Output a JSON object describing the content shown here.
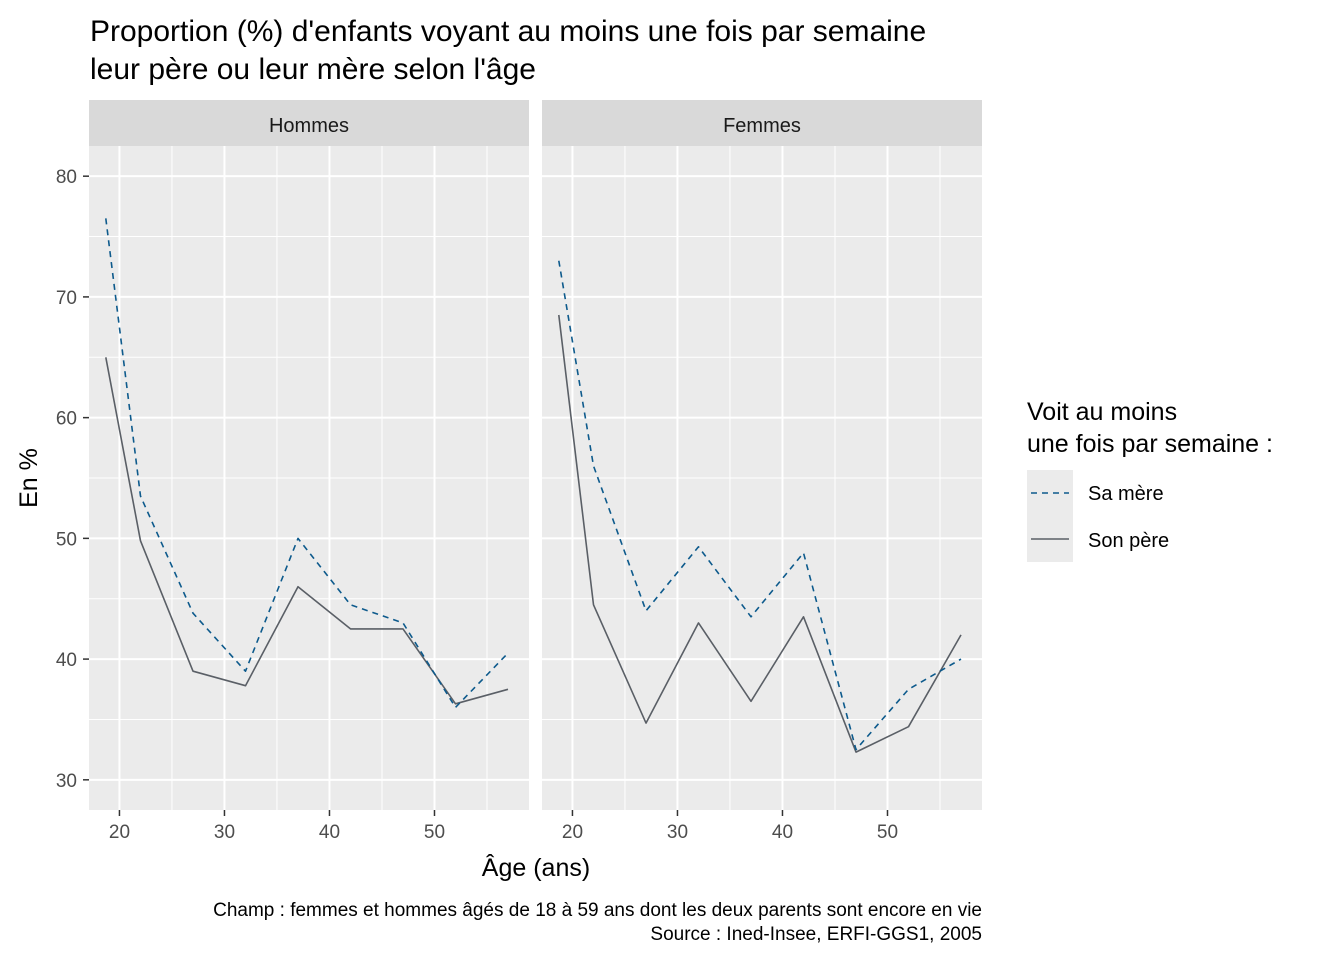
{
  "chart_data": {
    "type": "line",
    "title": [
      "Proportion (%) d'enfants voyant au moins une fois par semaine",
      "leur père ou leur mère selon l'âge"
    ],
    "xlabel": "Âge (ans)",
    "ylabel": "En %",
    "xlim": [
      17.1,
      59.0
    ],
    "ylim": [
      27.5,
      82.5
    ],
    "x_ticks": [
      20,
      30,
      40,
      50
    ],
    "y_ticks": [
      30,
      40,
      50,
      60,
      70,
      80
    ],
    "grid": true,
    "legend": {
      "position": "right",
      "title": [
        "Voit au moins",
        "une fois par semaine :"
      ],
      "entries": [
        {
          "label": "Sa mère",
          "color": "#0d5a8c",
          "dash": "dashed"
        },
        {
          "label": "Son père",
          "color": "#5a5f66",
          "dash": "solid"
        }
      ]
    },
    "caption": [
      "Champ : femmes et hommes âgés de 18 à 59 ans dont les deux parents sont encore en vie",
      "Source : Ined-Insee, ERFI-GGS1, 2005"
    ],
    "panels": [
      {
        "strip": "Hommes",
        "series": [
          {
            "name": "Sa mère",
            "x": [
              18.7,
              22,
              27,
              32,
              37,
              42,
              47,
              52,
              57
            ],
            "y": [
              76.5,
              53.5,
              43.8,
              39.0,
              50.0,
              44.5,
              43.0,
              36.0,
              40.5
            ]
          },
          {
            "name": "Son père",
            "x": [
              18.7,
              22,
              27,
              32,
              37,
              42,
              47,
              52,
              57
            ],
            "y": [
              65.0,
              49.8,
              39.0,
              37.8,
              46.0,
              42.5,
              42.5,
              36.3,
              37.5
            ]
          }
        ]
      },
      {
        "strip": "Femmes",
        "series": [
          {
            "name": "Sa mère",
            "x": [
              18.7,
              22,
              27,
              32,
              37,
              42,
              47,
              52,
              57
            ],
            "y": [
              73.0,
              56.0,
              44.0,
              49.3,
              43.5,
              48.8,
              32.5,
              37.5,
              40.0
            ]
          },
          {
            "name": "Son père",
            "x": [
              18.7,
              22,
              27,
              32,
              37,
              42,
              47,
              52,
              57
            ],
            "y": [
              68.5,
              44.5,
              34.7,
              43.0,
              36.5,
              43.5,
              32.3,
              34.4,
              42.0
            ]
          }
        ]
      }
    ]
  }
}
